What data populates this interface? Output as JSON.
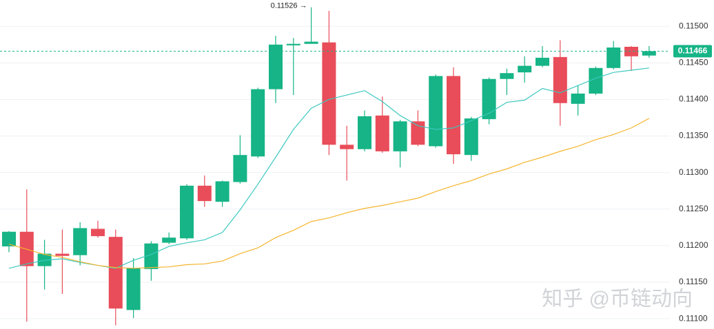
{
  "chart_data": {
    "type": "candlestick",
    "open": [
      0.11199,
      0.11219,
      0.11172,
      0.11189,
      0.11187,
      0.11223,
      0.11212,
      0.11112,
      0.11168,
      0.11204,
      0.1121,
      0.11282,
      0.1126,
      0.11287,
      0.11322,
      0.11414,
      0.11474,
      0.11476,
      0.11478,
      0.11338,
      0.11332,
      0.11378,
      0.11329,
      0.1137,
      0.11336,
      0.11432,
      0.11324,
      0.11373,
      0.11428,
      0.11437,
      0.11446,
      0.11458,
      0.11394,
      0.11408,
      0.11443,
      0.11472,
      0.1146
    ],
    "high": [
      0.1122,
      0.11277,
      0.11208,
      0.11222,
      0.11232,
      0.11234,
      0.11222,
      0.11183,
      0.11206,
      0.11218,
      0.11284,
      0.11296,
      0.11289,
      0.11351,
      0.11416,
      0.11487,
      0.11484,
      0.11526,
      0.11521,
      0.11364,
      0.11385,
      0.11404,
      0.11372,
      0.11385,
      0.11434,
      0.11444,
      0.11376,
      0.1143,
      0.11442,
      0.11459,
      0.11473,
      0.11481,
      0.11419,
      0.11445,
      0.1148,
      0.11473,
      0.11473
    ],
    "low": [
      0.11191,
      0.11096,
      0.1114,
      0.11134,
      0.11173,
      0.11211,
      0.11091,
      0.11101,
      0.11152,
      0.11202,
      0.11208,
      0.11253,
      0.11253,
      0.11285,
      0.1132,
      0.11395,
      0.11406,
      0.11477,
      0.11324,
      0.11289,
      0.11329,
      0.11327,
      0.11307,
      0.11336,
      0.11334,
      0.11312,
      0.11316,
      0.11366,
      0.11406,
      0.11423,
      0.11444,
      0.11364,
      0.11378,
      0.11406,
      0.11441,
      0.11439,
      0.11457
    ],
    "close": [
      0.11219,
      0.11172,
      0.11189,
      0.11186,
      0.11224,
      0.11213,
      0.11114,
      0.11169,
      0.11203,
      0.11211,
      0.11282,
      0.11261,
      0.11288,
      0.11324,
      0.11414,
      0.11475,
      0.11476,
      0.11479,
      0.11338,
      0.11332,
      0.11377,
      0.11329,
      0.1137,
      0.11338,
      0.11432,
      0.11325,
      0.11374,
      0.11428,
      0.11436,
      0.11446,
      0.11457,
      0.11395,
      0.11408,
      0.11443,
      0.11471,
      0.11459,
      0.11466
    ],
    "up_color": "#16b486",
    "down_color": "#e84d59",
    "series": [
      {
        "color": "#3cc8bf",
        "values": [
          0.11169,
          0.11175,
          0.1118,
          0.11182,
          0.11177,
          0.11173,
          0.11169,
          0.1118,
          0.11188,
          0.11199,
          0.11204,
          0.11208,
          0.11218,
          0.11249,
          0.11284,
          0.11321,
          0.11359,
          0.11388,
          0.114,
          0.11406,
          0.11412,
          0.11397,
          0.11378,
          0.11364,
          0.11359,
          0.11361,
          0.11371,
          0.11381,
          0.11396,
          0.11399,
          0.11415,
          0.11409,
          0.11419,
          0.11429,
          0.11437,
          0.1144,
          0.11443
        ]
      },
      {
        "color": "#f5b52e",
        "values": [
          0.11202,
          0.11195,
          0.11188,
          0.11184,
          0.11178,
          0.11173,
          0.1117,
          0.11169,
          0.1117,
          0.11171,
          0.11174,
          0.11175,
          0.11179,
          0.11189,
          0.11197,
          0.11211,
          0.11221,
          0.11233,
          0.11238,
          0.11245,
          0.11251,
          0.11255,
          0.1126,
          0.11265,
          0.11274,
          0.11282,
          0.11289,
          0.11298,
          0.11305,
          0.11314,
          0.11321,
          0.11329,
          0.11336,
          0.11345,
          0.11352,
          0.11361,
          0.11374
        ]
      }
    ],
    "ylim": [
      0.11086,
      0.11536
    ],
    "yticks": [
      {
        "value": 0.111,
        "label": "0.11100"
      },
      {
        "value": 0.1115,
        "label": "0.11150"
      },
      {
        "value": 0.112,
        "label": "0.11200"
      },
      {
        "value": 0.1125,
        "label": "0.11250"
      },
      {
        "value": 0.113,
        "label": "0.11300"
      },
      {
        "value": 0.1135,
        "label": "0.11350"
      },
      {
        "value": 0.114,
        "label": "0.11400"
      },
      {
        "value": 0.1145,
        "label": "0.11450"
      },
      {
        "value": 0.115,
        "label": "0.11500"
      }
    ],
    "grid": true,
    "last_price": 0.11466,
    "last_price_color": "#16b486",
    "annotations": [
      {
        "value": 0.11526,
        "label": "0.11526 →"
      }
    ],
    "watermark": "知乎 @币链动向"
  }
}
